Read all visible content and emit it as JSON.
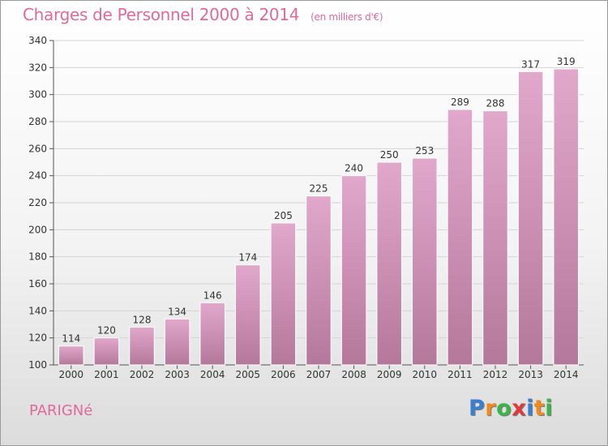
{
  "chart_data": {
    "type": "bar",
    "title": "Charges de Personnel 2000 à 2014",
    "subtitle": "(en milliers d'€)",
    "categories": [
      "2000",
      "2001",
      "2002",
      "2003",
      "2004",
      "2005",
      "2006",
      "2007",
      "2008",
      "2009",
      "2010",
      "2011",
      "2012",
      "2013",
      "2014"
    ],
    "values": [
      114,
      120,
      128,
      134,
      146,
      174,
      205,
      225,
      240,
      250,
      253,
      289,
      288,
      317,
      319
    ],
    "ylim": [
      100,
      340
    ],
    "yticks": [
      100,
      120,
      140,
      160,
      180,
      200,
      220,
      240,
      260,
      280,
      300,
      320,
      340
    ],
    "xlabel": "",
    "ylabel": "",
    "bar_color_top": "#e2a8cc",
    "bar_color_bottom": "#b4789a"
  },
  "footer": {
    "town": "PARIGNé",
    "logo_letters": [
      {
        "ch": "P",
        "color": "#3b7fd1"
      },
      {
        "ch": "r",
        "color": "#f08a1c"
      },
      {
        "ch": "o",
        "color": "#39b54a"
      },
      {
        "ch": "x",
        "color": "#e03a3a"
      },
      {
        "ch": "i",
        "color": "#3b7fd1"
      },
      {
        "ch": "t",
        "color": "#f08a1c"
      },
      {
        "ch": "i",
        "color": "#39b54a"
      }
    ]
  }
}
